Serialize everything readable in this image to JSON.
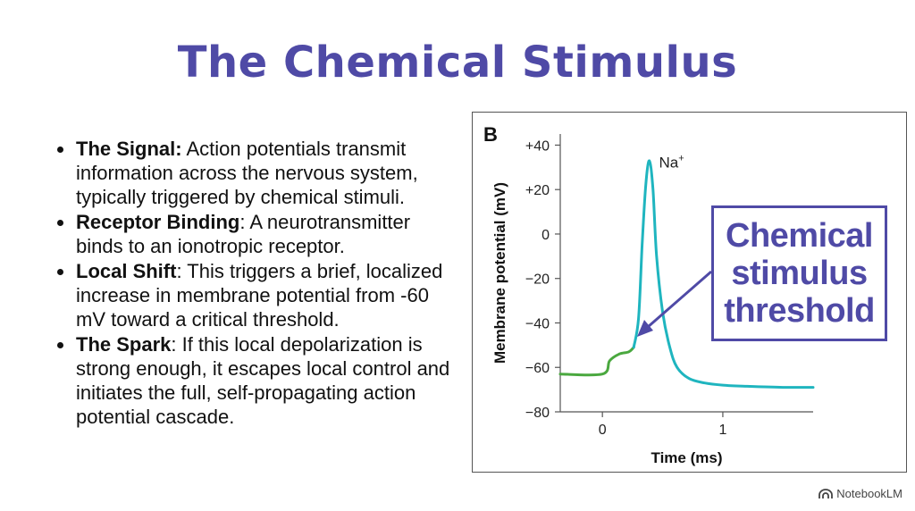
{
  "slide": {
    "title": "The Chemical Stimulus"
  },
  "bullets": [
    {
      "term": "The Signal:",
      "text": " Action potentials transmit information across the nervous system, typically triggered by chemical stimuli."
    },
    {
      "term": "Receptor Binding",
      "text": ": A neurotransmitter binds to an ionotropic receptor."
    },
    {
      "term": "Local Shift",
      "text": ": This triggers a brief, localized increase in membrane potential from -60 mV toward a critical threshold."
    },
    {
      "term": "The Spark",
      "text": ": If this local depolarization is strong enough, it escapes local control and initiates the full, self-propagating action potential cascade."
    }
  ],
  "chart_data": {
    "type": "line",
    "panel_label": "B",
    "xlabel": "Time (ms)",
    "ylabel": "Membrane potential (mV)",
    "xlim": [
      -0.35,
      1.75
    ],
    "ylim": [
      -80,
      45
    ],
    "x_ticks": [
      0,
      1
    ],
    "x_tick_labels": [
      "0",
      "1"
    ],
    "y_ticks": [
      40,
      20,
      0,
      -20,
      -40,
      -60,
      -80
    ],
    "y_tick_labels": [
      "+40",
      "+20",
      "0",
      "−20",
      "−40",
      "−60",
      "−80"
    ],
    "grid": false,
    "annotation": {
      "text": "Na",
      "superscript": "+"
    },
    "colors": {
      "stimulus": "#4aa83f",
      "action_potential": "#1fb5bf",
      "callout": "#4f4aa6",
      "title": "#4f4aa6"
    },
    "series": [
      {
        "role": "stimulus",
        "x": [
          -0.35,
          0,
          0.06,
          0.14,
          0.22,
          0.26
        ],
        "y": [
          -63,
          -63,
          -57,
          -54,
          -53,
          -51
        ]
      },
      {
        "role": "action_potential",
        "x": [
          0.26,
          0.3,
          0.33,
          0.36,
          0.39,
          0.42,
          0.45,
          0.5,
          0.56,
          0.62,
          0.72,
          0.85,
          1.0,
          1.2,
          1.5,
          1.75
        ],
        "y": [
          -51,
          -38,
          -5,
          22,
          33,
          20,
          -10,
          -35,
          -51,
          -60,
          -65,
          -67,
          -68,
          -68.5,
          -69,
          -69
        ]
      }
    ]
  },
  "callout": {
    "text": "Chemical\nstimulus\nthreshold"
  },
  "watermark": {
    "text": "NotebookLM"
  }
}
